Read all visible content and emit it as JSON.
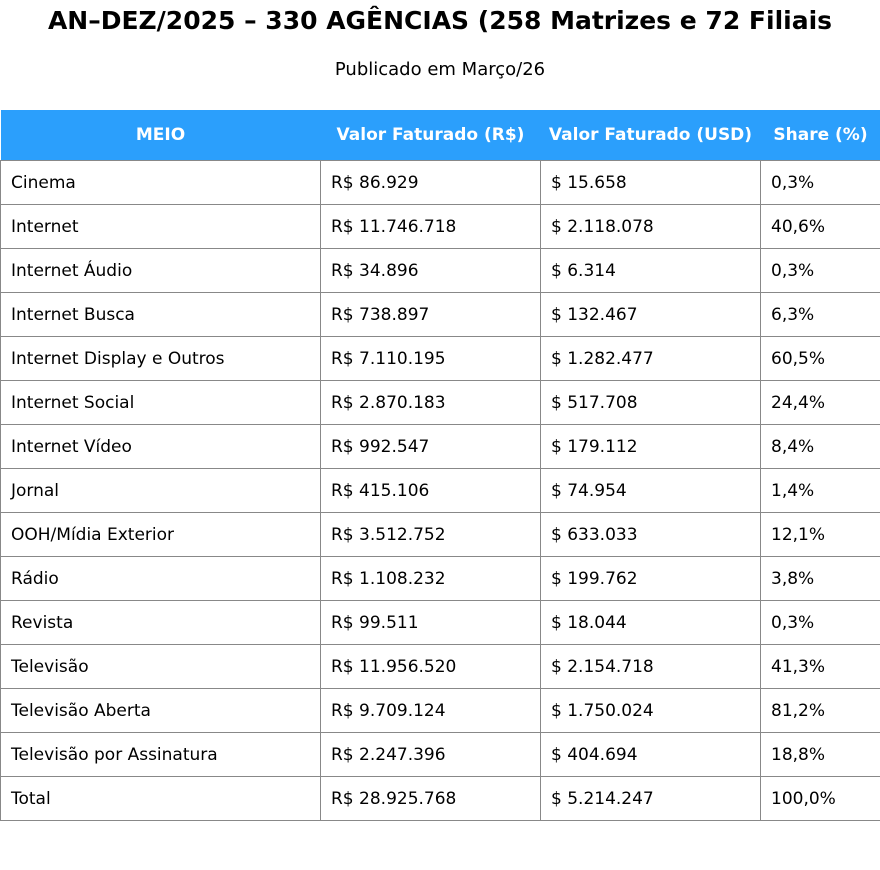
{
  "header": {
    "title": "AN–DEZ/2025 – 330 AGÊNCIAS (258 Matrizes e 72 Filiais",
    "subtitle": "Publicado em Março/26"
  },
  "table": {
    "columns": [
      "MEIO",
      "Valor Faturado (R$)",
      "Valor Faturado (USD)",
      "Share (%)"
    ],
    "rows": [
      [
        "Cinema",
        "R$ 86.929",
        "$ 15.658",
        "0,3%"
      ],
      [
        "Internet",
        "R$ 11.746.718",
        "$ 2.118.078",
        "40,6%"
      ],
      [
        "Internet Áudio",
        "R$ 34.896",
        "$ 6.314",
        "0,3%"
      ],
      [
        "Internet Busca",
        "R$ 738.897",
        "$ 132.467",
        "6,3%"
      ],
      [
        "Internet Display e Outros",
        "R$ 7.110.195",
        "$ 1.282.477",
        "60,5%"
      ],
      [
        "Internet Social",
        "R$ 2.870.183",
        "$ 517.708",
        "24,4%"
      ],
      [
        "Internet Vídeo",
        "R$ 992.547",
        "$ 179.112",
        "8,4%"
      ],
      [
        "Jornal",
        "R$ 415.106",
        "$ 74.954",
        "1,4%"
      ],
      [
        "OOH/Mídia Exterior",
        "R$ 3.512.752",
        "$ 633.033",
        "12,1%"
      ],
      [
        "Rádio",
        "R$ 1.108.232",
        "$ 199.762",
        "3,8%"
      ],
      [
        "Revista",
        "R$ 99.511",
        "$ 18.044",
        "0,3%"
      ],
      [
        "Televisão",
        "R$ 11.956.520",
        "$ 2.154.718",
        "41,3%"
      ],
      [
        "Televisão Aberta",
        "R$ 9.709.124",
        "$ 1.750.024",
        "81,2%"
      ],
      [
        "Televisão por Assinatura",
        "R$ 2.247.396",
        "$ 404.694",
        "18,8%"
      ],
      [
        "Total",
        "R$ 28.925.768",
        "$ 5.214.247",
        "100,0%"
      ]
    ]
  }
}
